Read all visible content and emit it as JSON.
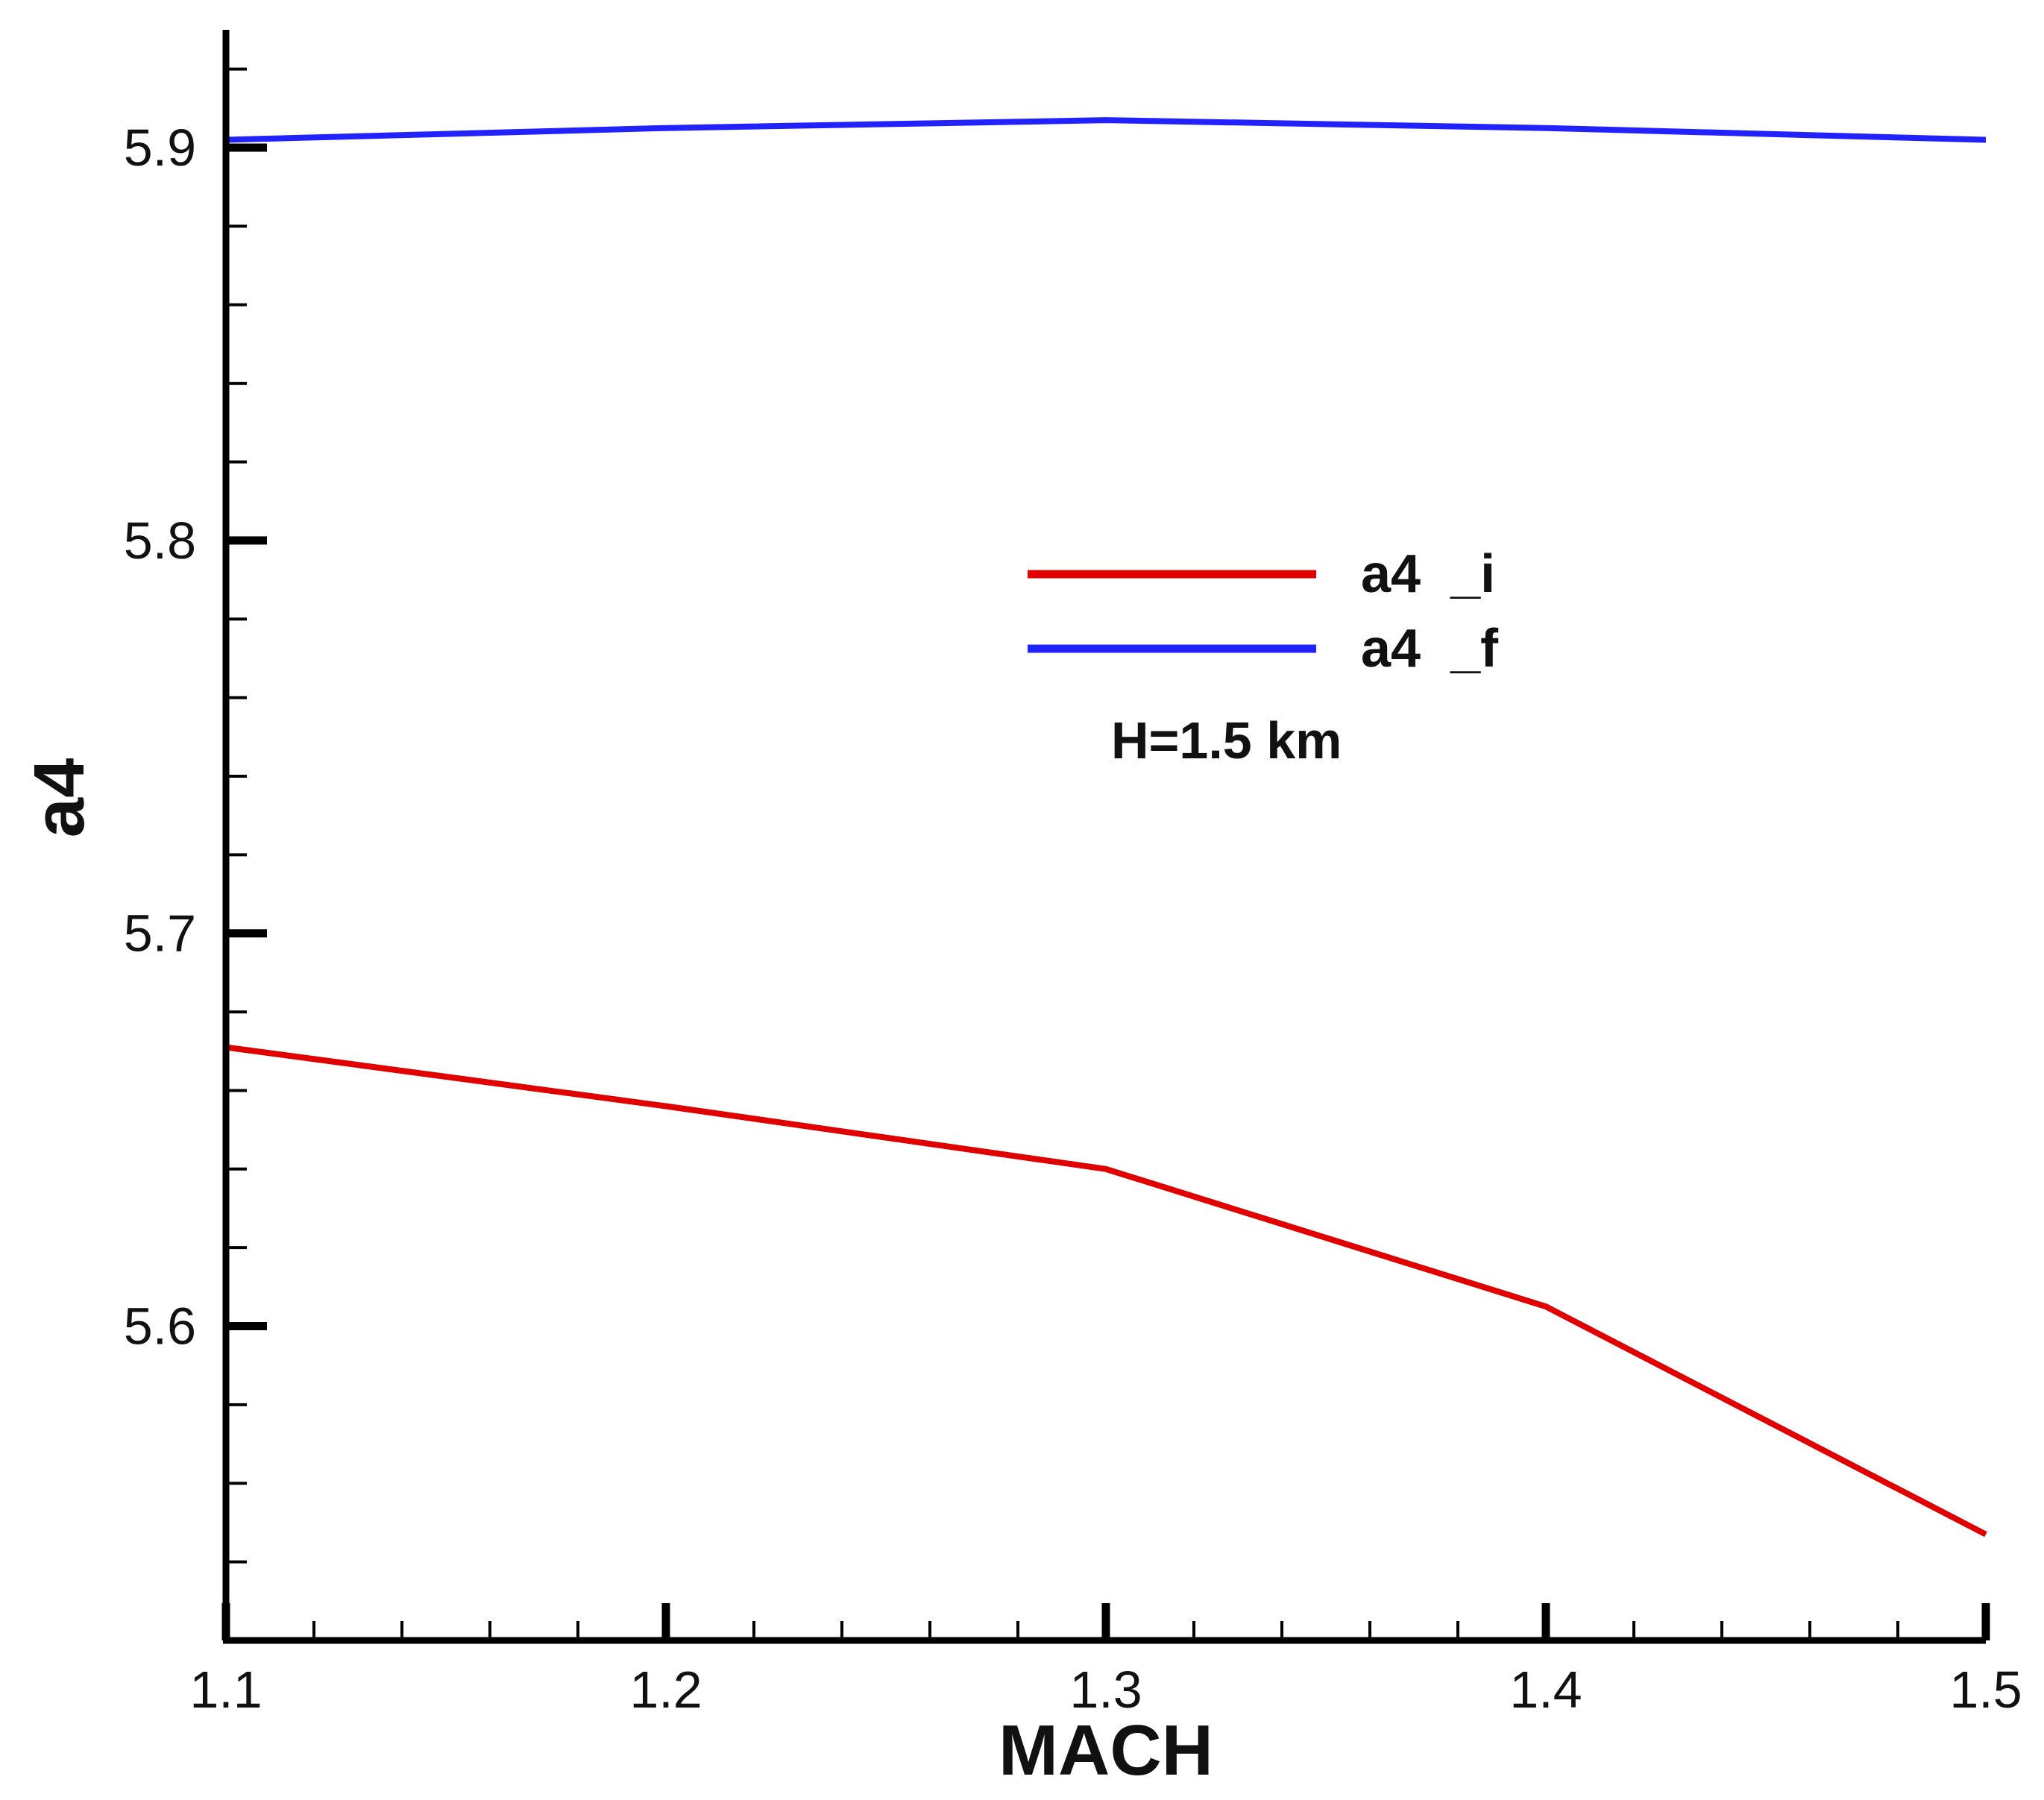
{
  "chart_data": {
    "type": "line",
    "title": "",
    "xlabel": "MACH",
    "ylabel": "a4",
    "xlim": [
      1.1,
      1.5
    ],
    "ylim": [
      5.52,
      5.93
    ],
    "x_ticks": [
      "1.1",
      "1.2",
      "1.3",
      "1.4",
      "1.5"
    ],
    "y_ticks": [
      "5.6",
      "5.7",
      "5.8",
      "5.9"
    ],
    "grid": false,
    "legend_position": "center-right",
    "annotation": "H=1.5 km",
    "series": [
      {
        "name": "a4  _i",
        "color": "#e00000",
        "x": [
          1.1,
          1.2,
          1.3,
          1.4,
          1.5
        ],
        "y": [
          5.671,
          5.656,
          5.64,
          5.605,
          5.547
        ]
      },
      {
        "name": "a4  _f",
        "color": "#2222ff",
        "x": [
          1.1,
          1.2,
          1.3,
          1.4,
          1.5
        ],
        "y": [
          5.902,
          5.905,
          5.907,
          5.905,
          5.902
        ]
      }
    ]
  }
}
